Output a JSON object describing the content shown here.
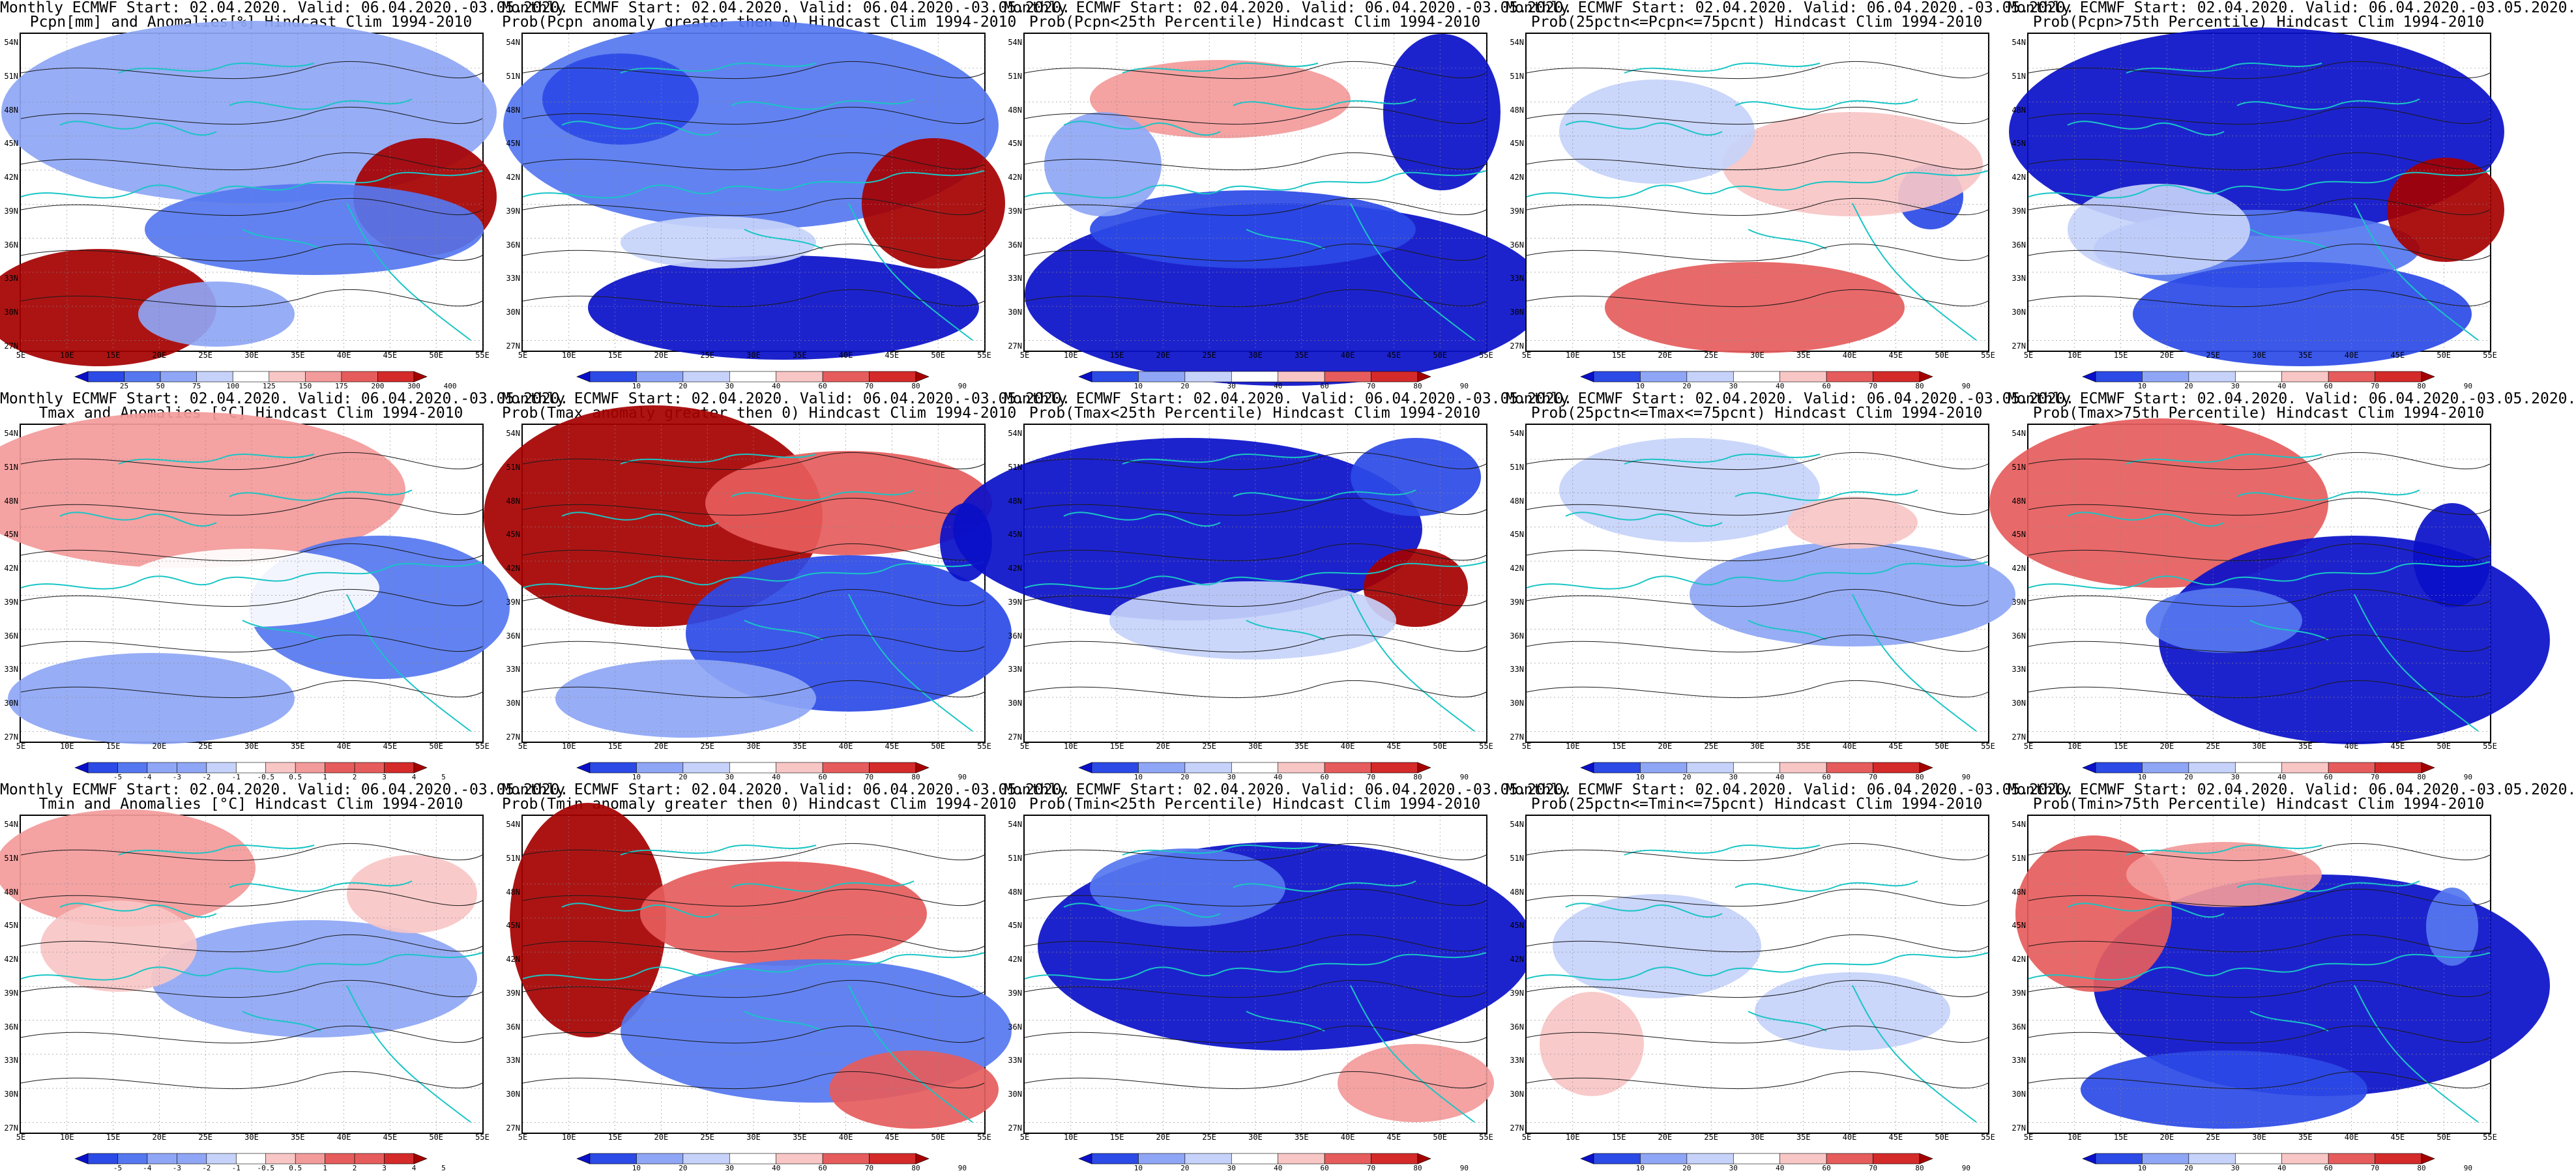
{
  "lat_labels": [
    "54N",
    "51N",
    "48N",
    "45N",
    "42N",
    "39N",
    "36N",
    "33N",
    "30N",
    "27N"
  ],
  "lon_labels": [
    "5E",
    "10E",
    "15E",
    "20E",
    "25E",
    "30E",
    "35E",
    "40E",
    "45E",
    "50E",
    "55E"
  ],
  "colors": {
    "coast": "#19c5c5",
    "contour": "#1a1a1a",
    "blue_scale": [
      "#0a10c8",
      "#2b4ae6",
      "#5577f0",
      "#8ea6f5",
      "#c6d2fa",
      "#ffffff"
    ],
    "red_scale": [
      "#ffffff",
      "#f9c6c6",
      "#f39a9a",
      "#e65c5c",
      "#d42a2a",
      "#a50000"
    ]
  },
  "scales": {
    "pcpn": [
      "25",
      "50",
      "75",
      "100",
      "125",
      "150",
      "175",
      "200",
      "300",
      "400"
    ],
    "prob": [
      "10",
      "20",
      "30",
      "40",
      "60",
      "70",
      "80",
      "90"
    ],
    "temp": [
      "-5",
      "-4",
      "-3",
      "-2",
      "-1",
      "-0.5",
      "0.5",
      "1",
      "2",
      "3",
      "4",
      "5"
    ]
  },
  "panels": [
    {
      "line1": "Monthly ECMWF Start: 02.04.2020. Valid: 06.04.2020.-03.05.2020.",
      "line2": "Pcpn[mm] and Anomalies[%] Hindcast Clim 1994-2010",
      "scale": "pcpn",
      "pattern": "pcpn_anom"
    },
    {
      "line1": "Monthly ECMWF Start: 02.04.2020. Valid: 06.04.2020.-03.05.2020.",
      "line2": "Prob(Pcpn anomaly greater then 0) Hindcast Clim 1994-2010",
      "scale": "prob",
      "pattern": "pcpn_pos"
    },
    {
      "line1": "Monthly ECMWF Start: 02.04.2020. Valid: 06.04.2020.-03.05.2020.",
      "line2": "Prob(Pcpn<25th Percentile) Hindcast Clim 1994-2010",
      "scale": "prob",
      "pattern": "pcpn_low"
    },
    {
      "line1": "Monthly ECMWF Start: 02.04.2020. Valid: 06.04.2020.-03.05.2020.",
      "line2": "Prob(25pctn<=Pcpn<=75pcnt) Hindcast Clim 1994-2010",
      "scale": "prob",
      "pattern": "pcpn_mid"
    },
    {
      "line1": "Monthly ECMWF Start: 02.04.2020. Valid: 06.04.2020.-03.05.2020.",
      "line2": "Prob(Pcpn>75th Percentile) Hindcast Clim 1994-2010",
      "scale": "prob",
      "pattern": "pcpn_high"
    },
    {
      "line1": "Monthly ECMWF Start: 02.04.2020. Valid: 06.04.2020.-03.05.2020.",
      "line2": "Tmax and Anomalies [°C] Hindcast Clim 1994-2010",
      "scale": "temp",
      "pattern": "tmax_anom"
    },
    {
      "line1": "Monthly ECMWF Start: 02.04.2020. Valid: 06.04.2020.-03.05.2020.",
      "line2": "Prob(Tmax anomaly greater then 0) Hindcast Clim 1994-2010",
      "scale": "prob",
      "pattern": "tmax_pos"
    },
    {
      "line1": "Monthly ECMWF Start: 02.04.2020. Valid: 06.04.2020.-03.05.2020.",
      "line2": "Prob(Tmax<25th Percentile) Hindcast Clim 1994-2010",
      "scale": "prob",
      "pattern": "tmax_low"
    },
    {
      "line1": "Monthly ECMWF Start: 02.04.2020. Valid: 06.04.2020.-03.05.2020.",
      "line2": "Prob(25pctn<=Tmax<=75pcnt) Hindcast Clim 1994-2010",
      "scale": "prob",
      "pattern": "tmax_mid"
    },
    {
      "line1": "Monthly ECMWF Start: 02.04.2020. Valid: 06.04.2020.-03.05.2020.",
      "line2": "Prob(Tmax>75th Percentile) Hindcast Clim 1994-2010",
      "scale": "prob",
      "pattern": "tmax_high"
    },
    {
      "line1": "Monthly ECMWF Start: 02.04.2020. Valid: 06.04.2020.-03.05.2020.",
      "line2": "Tmin and Anomalies [°C] Hindcast Clim 1994-2010",
      "scale": "temp",
      "pattern": "tmin_anom"
    },
    {
      "line1": "Monthly ECMWF Start: 02.04.2020. Valid: 06.04.2020.-03.05.2020.",
      "line2": "Prob(Tmin anomaly greater then 0) Hindcast Clim 1994-2010",
      "scale": "prob",
      "pattern": "tmin_pos"
    },
    {
      "line1": "Monthly ECMWF Start: 02.04.2020. Valid: 06.04.2020.-03.05.2020.",
      "line2": "Prob(Tmin<25th Percentile) Hindcast Clim 1994-2010",
      "scale": "prob",
      "pattern": "tmin_low"
    },
    {
      "line1": "Monthly ECMWF Start: 02.04.2020. Valid: 06.04.2020.-03.05.2020.",
      "line2": "Prob(25pctn<=Tmin<=75pcnt) Hindcast Clim 1994-2010",
      "scale": "prob",
      "pattern": "tmin_mid"
    },
    {
      "line1": "Monthly ECMWF Start: 02.04.2020. Valid: 06.04.2020.-03.05.2020.",
      "line2": "Prob(Tmin>75th Percentile) Hindcast Clim 1994-2010",
      "scale": "prob",
      "pattern": "tmin_high"
    }
  ]
}
